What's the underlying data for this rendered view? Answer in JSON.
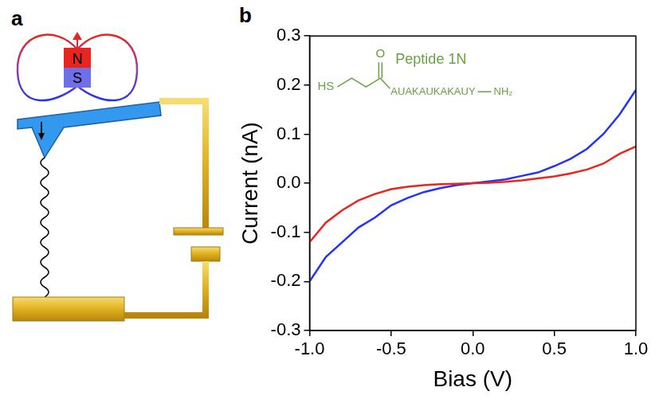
{
  "diagram": {
    "panel_label": "a",
    "magnet": {
      "north": "N",
      "south": "S"
    }
  },
  "chart_data": {
    "type": "line",
    "panel_label": "b",
    "x_label": "Bias (V)",
    "y_label": "Current (nA)",
    "x": [
      -1.0,
      -0.9,
      -0.8,
      -0.7,
      -0.6,
      -0.5,
      -0.4,
      -0.3,
      -0.2,
      -0.1,
      0.0,
      0.1,
      0.2,
      0.3,
      0.4,
      0.5,
      0.6,
      0.7,
      0.8,
      0.9,
      1.0
    ],
    "series": [
      {
        "color": "#e8251f",
        "values": [
          -0.12,
          -0.08,
          -0.055,
          -0.035,
          -0.022,
          -0.012,
          -0.007,
          -0.004,
          -0.002,
          -0.001,
          0.0,
          0.001,
          0.003,
          0.006,
          0.01,
          0.014,
          0.02,
          0.028,
          0.04,
          0.06,
          0.075
        ]
      },
      {
        "color": "#2433f5",
        "values": [
          -0.2,
          -0.15,
          -0.12,
          -0.09,
          -0.07,
          -0.045,
          -0.03,
          -0.018,
          -0.01,
          -0.004,
          0.0,
          0.004,
          0.008,
          0.015,
          0.022,
          0.035,
          0.05,
          0.07,
          0.1,
          0.14,
          0.19
        ]
      }
    ],
    "xlim": [
      -1,
      1
    ],
    "xticks": [
      {
        "value": -1,
        "label": "-1.0"
      },
      -0.5,
      {
        "value": 0,
        "label": "0.0"
      },
      0.5,
      {
        "value": 1,
        "label": "1.0"
      }
    ],
    "ylim": [
      -0.3,
      0.3
    ],
    "yticks": [
      -0.3,
      -0.2,
      -0.1,
      {
        "value": 0,
        "label": "0.0"
      },
      0.1,
      0.2,
      0.3
    ],
    "grid": false,
    "annotations": {
      "title": "Peptide 1N",
      "thiol": "HS",
      "carbonyl": "O",
      "sequence": "AUAKAUKAKAUY",
      "terminus": "NH₂",
      "color": "#6aa042"
    }
  }
}
